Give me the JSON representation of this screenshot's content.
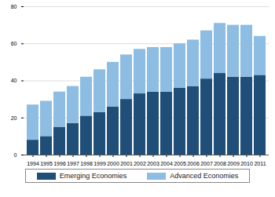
{
  "chart_data": {
    "type": "bar",
    "stacked": true,
    "categories": [
      "1994",
      "1995",
      "1996",
      "1997",
      "1998",
      "1999",
      "2000",
      "2001",
      "2002",
      "2003",
      "2004",
      "2005",
      "2006",
      "2007",
      "2008",
      "2009",
      "2010",
      "2011"
    ],
    "series": [
      {
        "name": "Emerging Economies",
        "color": "#1f4e79",
        "values": [
          8,
          10,
          15,
          17,
          21,
          23,
          26,
          30,
          33,
          34,
          34,
          36,
          37,
          41,
          44,
          42,
          42,
          43
        ]
      },
      {
        "name": "Advanced Economies",
        "color": "#8dbde3",
        "values": [
          19,
          19,
          19,
          20,
          21,
          23,
          24,
          24,
          24,
          24,
          24,
          24,
          25,
          26,
          27,
          28,
          28,
          21
        ]
      }
    ],
    "ylim": [
      0,
      80
    ],
    "yticks": [
      0,
      20,
      40,
      60,
      80
    ],
    "grid": true,
    "legend": "bottom"
  }
}
